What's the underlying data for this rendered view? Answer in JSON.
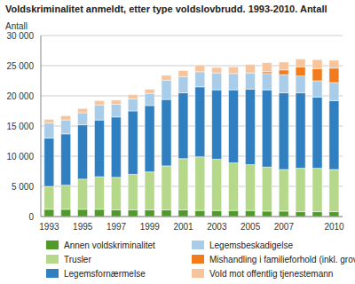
{
  "chart_data": {
    "type": "bar",
    "title": "Voldskriminalitet anmeldt, etter type voldslovbrudd. 1993-2010. Antall",
    "y_label": "Antall",
    "categories": [
      "1993",
      null,
      "1995",
      null,
      "1997",
      null,
      "1999",
      null,
      "2001",
      null,
      "2003",
      null,
      "2005",
      null,
      "2007",
      null,
      null,
      "2010"
    ],
    "stacked": true,
    "grid": true,
    "legend": "bottom",
    "ylim": [
      0,
      30000
    ],
    "yticks": [
      0,
      {
        "value": 5000,
        "label": "5 000"
      },
      {
        "value": 10000,
        "label": "10 000"
      },
      {
        "value": 15000,
        "label": "15 000"
      },
      {
        "value": 20000,
        "label": "20 000"
      },
      {
        "value": 25000,
        "label": "25 000"
      },
      {
        "value": 30000,
        "label": "30 000"
      }
    ],
    "series": [
      {
        "name": "Annen voldskriminalitet",
        "color": "#4f9a2b",
        "values": [
          1200,
          1200,
          1200,
          1200,
          1100,
          1100,
          1100,
          1100,
          1100,
          1000,
          1000,
          1000,
          1000,
          900,
          900,
          800,
          800,
          800
        ]
      },
      {
        "name": "Trusler",
        "color": "#b5d88b",
        "values": [
          3800,
          4000,
          5000,
          5400,
          5400,
          5900,
          6300,
          7300,
          8500,
          8900,
          8500,
          7900,
          7600,
          7300,
          6900,
          7200,
          7200,
          7000
        ]
      },
      {
        "name": "Legemsfornærmelse",
        "color": "#2f7fc1",
        "values": [
          8000,
          8500,
          9000,
          9400,
          10000,
          10500,
          11000,
          11000,
          10900,
          11600,
          11500,
          12100,
          12500,
          12800,
          12700,
          12500,
          11800,
          11400
        ]
      },
      {
        "name": "Legemsbeskadigelse",
        "color": "#a9cde8",
        "values": [
          2500,
          2300,
          2000,
          2500,
          2100,
          2000,
          2000,
          3200,
          2700,
          2500,
          2800,
          2700,
          2700,
          2700,
          3000,
          2800,
          2700,
          3000
        ]
      },
      {
        "name": "Mishandling i familieforhold (inkl. grov)",
        "color": "#f07c1e",
        "values": [
          0,
          0,
          0,
          0,
          0,
          0,
          0,
          0,
          0,
          0,
          0,
          0,
          0,
          300,
          800,
          1500,
          2000,
          2400
        ]
      },
      {
        "name": "Vold mot offentlig tjenestemann",
        "color": "#f7c49c",
        "values": [
          600,
          700,
          700,
          700,
          700,
          700,
          700,
          800,
          1000,
          1100,
          900,
          1100,
          1400,
          1500,
          1300,
          1300,
          1500,
          1300
        ]
      }
    ]
  }
}
